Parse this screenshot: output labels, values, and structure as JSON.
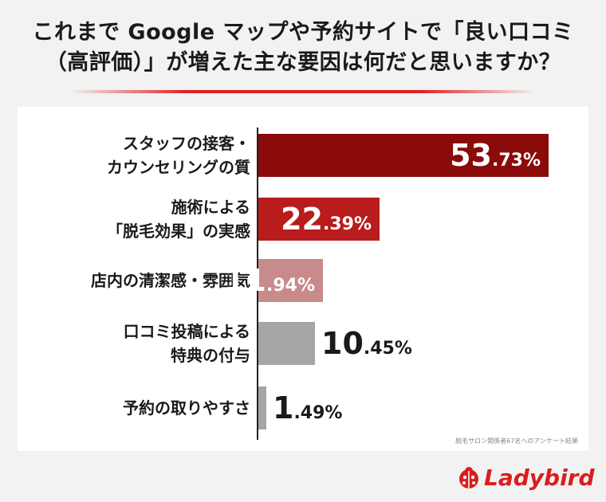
{
  "title_line1": "これまで Google マップや予約サイトで「良い口コミ",
  "title_line2": "（高評価）」が増えた主な要因は何だと思いますか？",
  "source_note": "脱毛サロン関係者67名へのアンケート結果",
  "brand": "Ladybird",
  "colors": {
    "bar1": "#8b0a0a",
    "bar2": "#b81c1c",
    "bar3": "#c88a8a",
    "bar4": "#a6a6a6",
    "bar5": "#a6a6a6",
    "title_rule": "#e02020",
    "logo": "#d81e1e"
  },
  "chart_data": {
    "type": "bar",
    "orientation": "horizontal",
    "categories": [
      [
        "スタッフの接客・",
        "カウンセリングの質"
      ],
      [
        "施術による",
        "「脱毛効果」の実感"
      ],
      [
        "店内の清潔感・雰囲気"
      ],
      [
        "口コミ投稿による",
        "特典の付与"
      ],
      [
        "予約の取りやすさ"
      ]
    ],
    "values": [
      53.73,
      22.39,
      11.94,
      10.45,
      1.49
    ],
    "value_labels": [
      {
        "int": "53",
        "dec": ".73%"
      },
      {
        "int": "22",
        "dec": ".39%"
      },
      {
        "int": "11",
        "dec": ".94%"
      },
      {
        "int": "10",
        "dec": ".45%"
      },
      {
        "int": "1",
        "dec": ".49%"
      }
    ],
    "xlim": [
      0,
      60
    ],
    "grid": false
  }
}
